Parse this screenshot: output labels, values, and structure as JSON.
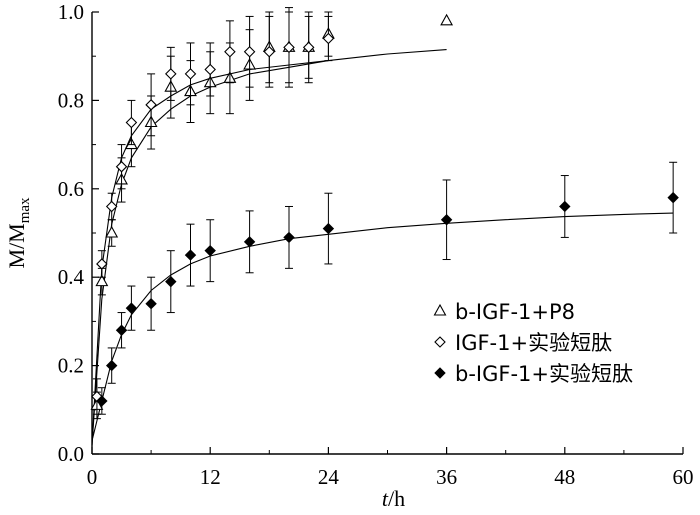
{
  "chart_data": {
    "type": "scatter",
    "title": "",
    "xlabel": {
      "italic": "t",
      "rest": "/h"
    },
    "ylabel": {
      "main": "M/M",
      "sub": "max"
    },
    "xlim": [
      0,
      60
    ],
    "ylim": [
      0,
      1.0
    ],
    "xticks": [
      0,
      12,
      24,
      36,
      48,
      60
    ],
    "yticks": [
      0.0,
      0.2,
      0.4,
      0.6,
      0.8,
      1.0
    ],
    "xtick_labels": [
      "0",
      "12",
      "24",
      "36",
      "48",
      "60"
    ],
    "ytick_labels": [
      "0.0",
      "0.2",
      "0.4",
      "0.6",
      "0.8",
      "1.0"
    ],
    "grid": false,
    "legend_position": "right",
    "series": [
      {
        "name": "b-IGF-1+P8",
        "marker": "open-triangle",
        "points": [
          {
            "x": 0.5,
            "y": 0.11,
            "err": 0.03
          },
          {
            "x": 1,
            "y": 0.39,
            "err": 0.03
          },
          {
            "x": 2,
            "y": 0.5,
            "err": 0.03
          },
          {
            "x": 3,
            "y": 0.62,
            "err": 0.05
          },
          {
            "x": 4,
            "y": 0.7,
            "err": 0.05
          },
          {
            "x": 6,
            "y": 0.75,
            "err": 0.06
          },
          {
            "x": 8,
            "y": 0.83,
            "err": 0.07
          },
          {
            "x": 10,
            "y": 0.82,
            "err": 0.07
          },
          {
            "x": 12,
            "y": 0.84,
            "err": 0.07
          },
          {
            "x": 14,
            "y": 0.85,
            "err": 0.08
          },
          {
            "x": 16,
            "y": 0.88,
            "err": 0.08
          },
          {
            "x": 18,
            "y": 0.92,
            "err": 0.08
          },
          {
            "x": 20,
            "y": 0.92,
            "err": 0.09
          },
          {
            "x": 22,
            "y": 0.92,
            "err": 0.08
          },
          {
            "x": 24,
            "y": 0.95,
            "err": 0.05
          },
          {
            "x": 36,
            "y": 0.98,
            "err": 0.0
          }
        ],
        "fit": [
          [
            0,
            0.02
          ],
          [
            1,
            0.35
          ],
          [
            2,
            0.52
          ],
          [
            3,
            0.61
          ],
          [
            4,
            0.67
          ],
          [
            6,
            0.74
          ],
          [
            8,
            0.78
          ],
          [
            10,
            0.81
          ],
          [
            12,
            0.83
          ],
          [
            16,
            0.86
          ],
          [
            20,
            0.875
          ],
          [
            24,
            0.89
          ],
          [
            30,
            0.905
          ],
          [
            36,
            0.915
          ]
        ]
      },
      {
        "name": "IGF-1+实验短肽",
        "marker": "open-diamond",
        "points": [
          {
            "x": 0.5,
            "y": 0.13,
            "err": 0.04
          },
          {
            "x": 1,
            "y": 0.43,
            "err": 0.03
          },
          {
            "x": 2,
            "y": 0.56,
            "err": 0.03
          },
          {
            "x": 3,
            "y": 0.65,
            "err": 0.05
          },
          {
            "x": 4,
            "y": 0.75,
            "err": 0.05
          },
          {
            "x": 6,
            "y": 0.79,
            "err": 0.07
          },
          {
            "x": 8,
            "y": 0.86,
            "err": 0.06
          },
          {
            "x": 10,
            "y": 0.86,
            "err": 0.07
          },
          {
            "x": 12,
            "y": 0.87,
            "err": 0.06
          },
          {
            "x": 14,
            "y": 0.91,
            "err": 0.07
          },
          {
            "x": 16,
            "y": 0.91,
            "err": 0.08
          },
          {
            "x": 18,
            "y": 0.91,
            "err": 0.08
          },
          {
            "x": 20,
            "y": 0.92,
            "err": 0.08
          },
          {
            "x": 22,
            "y": 0.92,
            "err": 0.07
          },
          {
            "x": 24,
            "y": 0.94,
            "err": 0.05
          }
        ],
        "fit": [
          [
            0,
            0.02
          ],
          [
            1,
            0.42
          ],
          [
            2,
            0.58
          ],
          [
            3,
            0.67
          ],
          [
            4,
            0.72
          ],
          [
            6,
            0.78
          ],
          [
            8,
            0.81
          ],
          [
            10,
            0.835
          ],
          [
            12,
            0.85
          ],
          [
            16,
            0.87
          ],
          [
            20,
            0.88
          ],
          [
            24,
            0.89
          ]
        ]
      },
      {
        "name": "b-IGF-1+实验短肽",
        "marker": "filled-diamond",
        "points": [
          {
            "x": 1,
            "y": 0.12,
            "err": 0.03
          },
          {
            "x": 2,
            "y": 0.2,
            "err": 0.04
          },
          {
            "x": 3,
            "y": 0.28,
            "err": 0.04
          },
          {
            "x": 4,
            "y": 0.33,
            "err": 0.05
          },
          {
            "x": 6,
            "y": 0.34,
            "err": 0.06
          },
          {
            "x": 8,
            "y": 0.39,
            "err": 0.07
          },
          {
            "x": 10,
            "y": 0.45,
            "err": 0.07
          },
          {
            "x": 12,
            "y": 0.46,
            "err": 0.07
          },
          {
            "x": 16,
            "y": 0.48,
            "err": 0.07
          },
          {
            "x": 20,
            "y": 0.49,
            "err": 0.07
          },
          {
            "x": 24,
            "y": 0.51,
            "err": 0.08
          },
          {
            "x": 36,
            "y": 0.53,
            "err": 0.09
          },
          {
            "x": 48,
            "y": 0.56,
            "err": 0.07
          },
          {
            "x": 59,
            "y": 0.58,
            "err": 0.08
          }
        ],
        "fit": [
          [
            0,
            0.03
          ],
          [
            1,
            0.12
          ],
          [
            2,
            0.21
          ],
          [
            3,
            0.27
          ],
          [
            4,
            0.315
          ],
          [
            6,
            0.37
          ],
          [
            8,
            0.405
          ],
          [
            10,
            0.43
          ],
          [
            12,
            0.448
          ],
          [
            16,
            0.47
          ],
          [
            20,
            0.487
          ],
          [
            24,
            0.497
          ],
          [
            30,
            0.512
          ],
          [
            36,
            0.522
          ],
          [
            42,
            0.53
          ],
          [
            48,
            0.537
          ],
          [
            54,
            0.542
          ],
          [
            59,
            0.545
          ]
        ]
      }
    ]
  }
}
